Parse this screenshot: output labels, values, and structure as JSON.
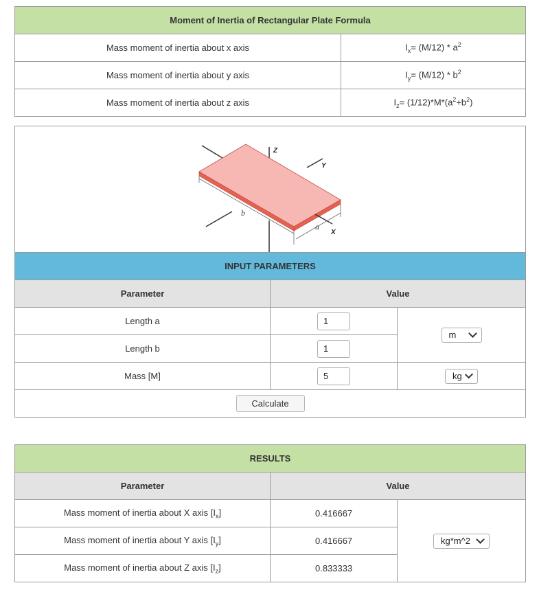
{
  "formula": {
    "title": "Moment of Inertia of Rectangular Plate Formula",
    "rows": [
      {
        "label": "Mass moment of inertia about x axis",
        "sym": "I",
        "sub": "x",
        "pre": "= (M/12) * a",
        "sup": "2"
      },
      {
        "label": "Mass moment of inertia about y axis",
        "sym": "I",
        "sub": "y",
        "pre": "= (M/12) * b",
        "sup": "2"
      },
      {
        "label": "Mass moment of inertia about z axis",
        "sym": "I",
        "sub": "z",
        "pre": "= (1/12)*M*(a",
        "sup": "2",
        "mid": "+b",
        "sup2": "2",
        "post": ")"
      }
    ]
  },
  "diagram": {
    "label_z": "Z",
    "label_y": "Y",
    "label_x": "X",
    "label_a": "a",
    "label_b": "b",
    "plate_color": "#f7b8b4",
    "edge_color": "#e8604f"
  },
  "inputs": {
    "title": "INPUT PARAMETERS",
    "col_param": "Parameter",
    "col_value": "Value",
    "rows": [
      {
        "label": "Length a",
        "value": "1"
      },
      {
        "label": "Length b",
        "value": "1"
      },
      {
        "label": "Mass [M]",
        "value": "5"
      }
    ],
    "length_unit": "m",
    "mass_unit": "kg",
    "calculate_label": "Calculate"
  },
  "results": {
    "title": "RESULTS",
    "col_param": "Parameter",
    "col_value": "Value",
    "rows": [
      {
        "label": "Mass moment of inertia about X axis [I",
        "sub": "x",
        "end": "]",
        "value": "0.416667"
      },
      {
        "label": "Mass moment of inertia about Y axis [I",
        "sub": "y",
        "end": "]",
        "value": "0.416667"
      },
      {
        "label": "Mass moment of inertia about Z axis [I",
        "sub": "z",
        "end": "]",
        "value": "0.833333"
      }
    ],
    "unit": "kg*m^2"
  },
  "colors": {
    "header_green": "#c5e0a5",
    "header_blue": "#62b9db",
    "header_grey": "#e3e3e3"
  }
}
